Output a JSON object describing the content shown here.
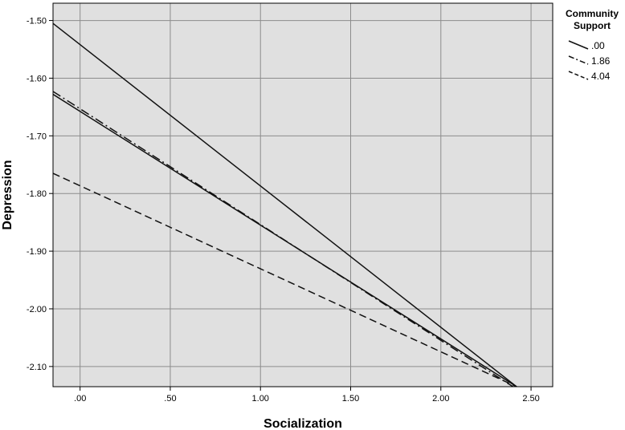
{
  "chart_data": {
    "type": "line",
    "xlabel": "Socialization",
    "ylabel": "Depression",
    "xlim": [
      -0.15,
      2.62
    ],
    "ylim": [
      -2.135,
      -1.47
    ],
    "x_ticks": [
      0,
      0.5,
      1.0,
      1.5,
      2.0,
      2.5
    ],
    "x_tick_labels": [
      ".00",
      ".50",
      "1.00",
      "1.50",
      "2.00",
      "2.50"
    ],
    "y_ticks": [
      -1.5,
      -1.6,
      -1.7,
      -1.8,
      -1.9,
      -2.0,
      -2.1
    ],
    "y_tick_labels": [
      "-1.50",
      "-1.60",
      "-1.70",
      "-1.80",
      "-1.90",
      "-2.00",
      "-2.10"
    ],
    "grid": true,
    "legend": {
      "title_lines": [
        "Community",
        "Support"
      ],
      "placement": "right"
    },
    "series": [
      {
        "name": ".00",
        "style": "solid",
        "points": [
          [
            -0.15,
            -1.505
          ],
          [
            2.42,
            -2.135
          ]
        ]
      },
      {
        "name": "1.86",
        "style": "dashdot",
        "points": [
          [
            -0.15,
            -1.623
          ],
          [
            2.4,
            -2.135
          ]
        ]
      },
      {
        "name": "",
        "style": "solid",
        "points": [
          [
            -0.15,
            -1.628
          ],
          [
            2.42,
            -2.135
          ]
        ]
      },
      {
        "name": "4.04",
        "style": "dashed",
        "points": [
          [
            -0.15,
            -1.765
          ],
          [
            2.42,
            -2.135
          ]
        ]
      }
    ],
    "colors": {
      "plot_background": "#e0e0e0",
      "grid": "#8c8c8c",
      "line": "#111111"
    }
  }
}
